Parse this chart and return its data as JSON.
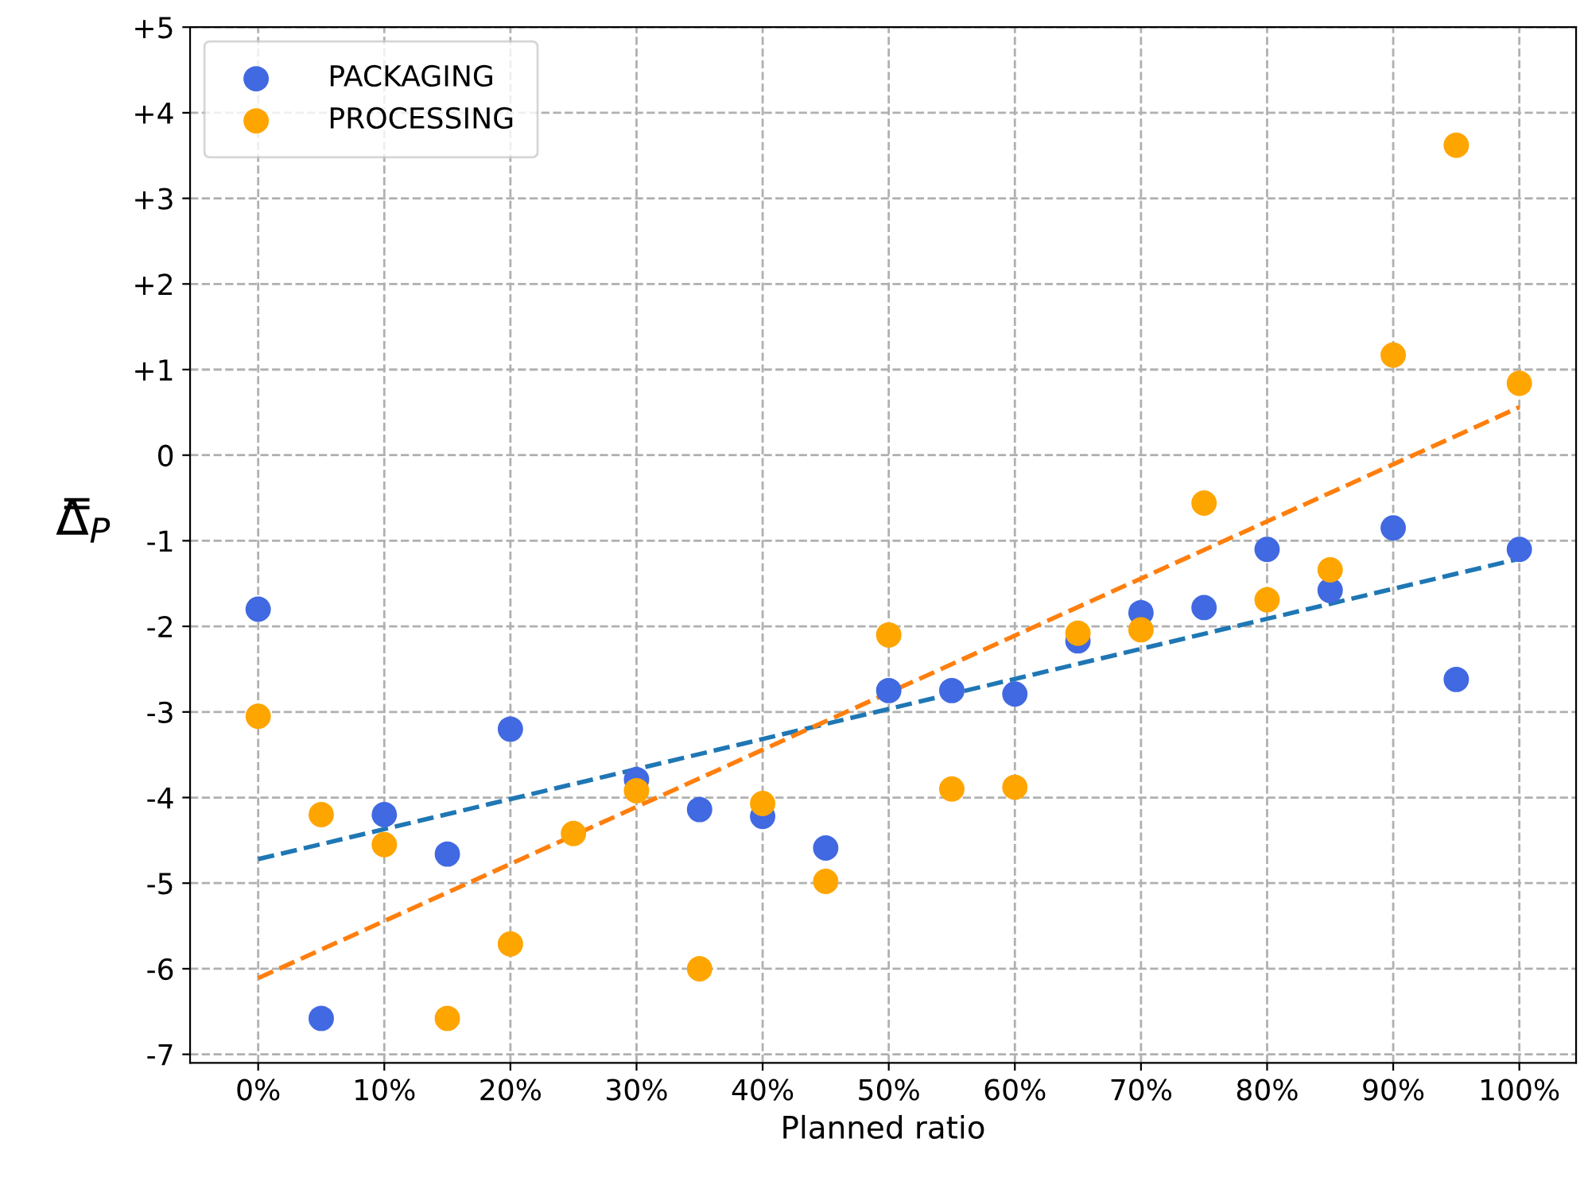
{
  "chart_data": {
    "type": "scatter",
    "xlabel": "Planned ratio",
    "ylabel": "Δ̿$_{P}$",
    "xlim": [
      -5.4,
      104.5
    ],
    "ylim": [
      -7.1,
      5
    ],
    "xticks": [
      {
        "value": 0,
        "label": "0%"
      },
      {
        "value": 10,
        "label": "10%"
      },
      {
        "value": 20,
        "label": "20%"
      },
      {
        "value": 30,
        "label": "30%"
      },
      {
        "value": 40,
        "label": "40%"
      },
      {
        "value": 50,
        "label": "50%"
      },
      {
        "value": 60,
        "label": "60%"
      },
      {
        "value": 70,
        "label": "70%"
      },
      {
        "value": 80,
        "label": "80%"
      },
      {
        "value": 90,
        "label": "90%"
      },
      {
        "value": 100,
        "label": "100%"
      }
    ],
    "yticks": [
      {
        "value": -7,
        "label": "-7"
      },
      {
        "value": -6,
        "label": "-6"
      },
      {
        "value": -5,
        "label": "-5"
      },
      {
        "value": -4,
        "label": "-4"
      },
      {
        "value": -3,
        "label": "-3"
      },
      {
        "value": -2,
        "label": "-2"
      },
      {
        "value": -1,
        "label": "-1"
      },
      0,
      {
        "value": 1,
        "label": "+1"
      },
      {
        "value": 2,
        "label": "+2"
      },
      {
        "value": 3,
        "label": "+3"
      },
      {
        "value": 4,
        "label": "+4"
      },
      {
        "value": 5,
        "label": "+5"
      }
    ],
    "grid": true,
    "legend": "top left",
    "series": [
      {
        "name": "PACKAGING",
        "marker": "circle",
        "color": "#4169e1",
        "x": [
          0,
          5,
          10,
          15,
          20,
          25,
          30,
          35,
          40,
          45,
          50,
          55,
          60,
          65,
          70,
          75,
          80,
          85,
          90,
          95,
          100
        ],
        "values": [
          -1.8,
          -6.58,
          -4.2,
          -4.66,
          -3.2,
          null,
          -3.79,
          -4.14,
          -4.22,
          -4.59,
          -2.75,
          -2.75,
          -2.79,
          -2.17,
          -1.84,
          -1.78,
          -1.1,
          -1.58,
          -0.85,
          -2.62,
          -1.1
        ]
      },
      {
        "name": "PROCESSING",
        "marker": "circle",
        "color": "#ffa500",
        "x": [
          0,
          5,
          10,
          15,
          20,
          25,
          30,
          35,
          40,
          45,
          50,
          55,
          60,
          65,
          70,
          75,
          80,
          85,
          90,
          95,
          100
        ],
        "values": [
          -3.05,
          -4.2,
          -4.55,
          -6.58,
          -5.71,
          -4.42,
          -3.92,
          -6.0,
          -4.07,
          -4.98,
          -2.1,
          -3.9,
          -3.88,
          -2.08,
          -2.04,
          -0.56,
          -1.69,
          -1.34,
          1.17,
          3.62,
          0.84
        ]
      },
      {
        "type": "line",
        "line_style": "dashed",
        "color": "#1f77b4",
        "x": [
          0,
          100
        ],
        "values": [
          -4.72,
          -1.21
        ]
      },
      {
        "type": "line",
        "line_style": "dashed",
        "color": "#ff7f0e",
        "x": [
          0,
          100
        ],
        "values": [
          -6.11,
          0.56
        ]
      }
    ]
  }
}
